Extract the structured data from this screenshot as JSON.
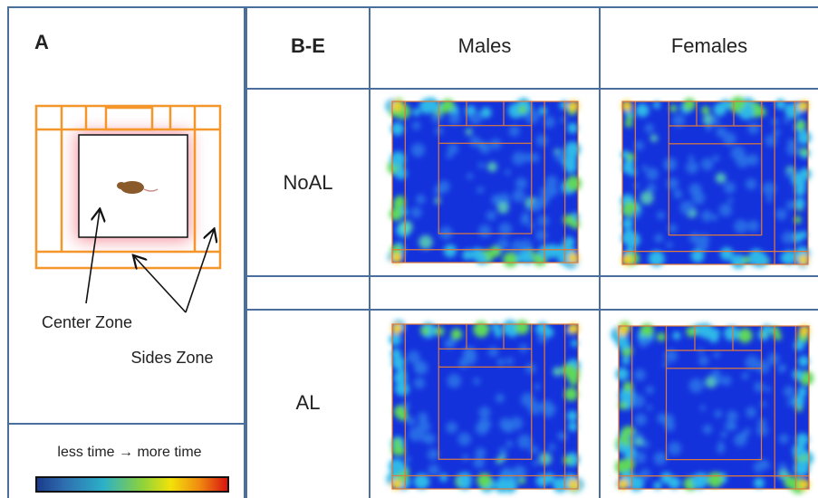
{
  "panel_a": {
    "label": "A",
    "center_zone": "Center Zone",
    "sides_zone": "Sides Zone",
    "colorbar_caption": "less time → more time"
  },
  "table": {
    "corner": "B-E",
    "columns": [
      "Males",
      "Females"
    ],
    "rows": [
      "NoAL",
      "AL"
    ]
  }
}
